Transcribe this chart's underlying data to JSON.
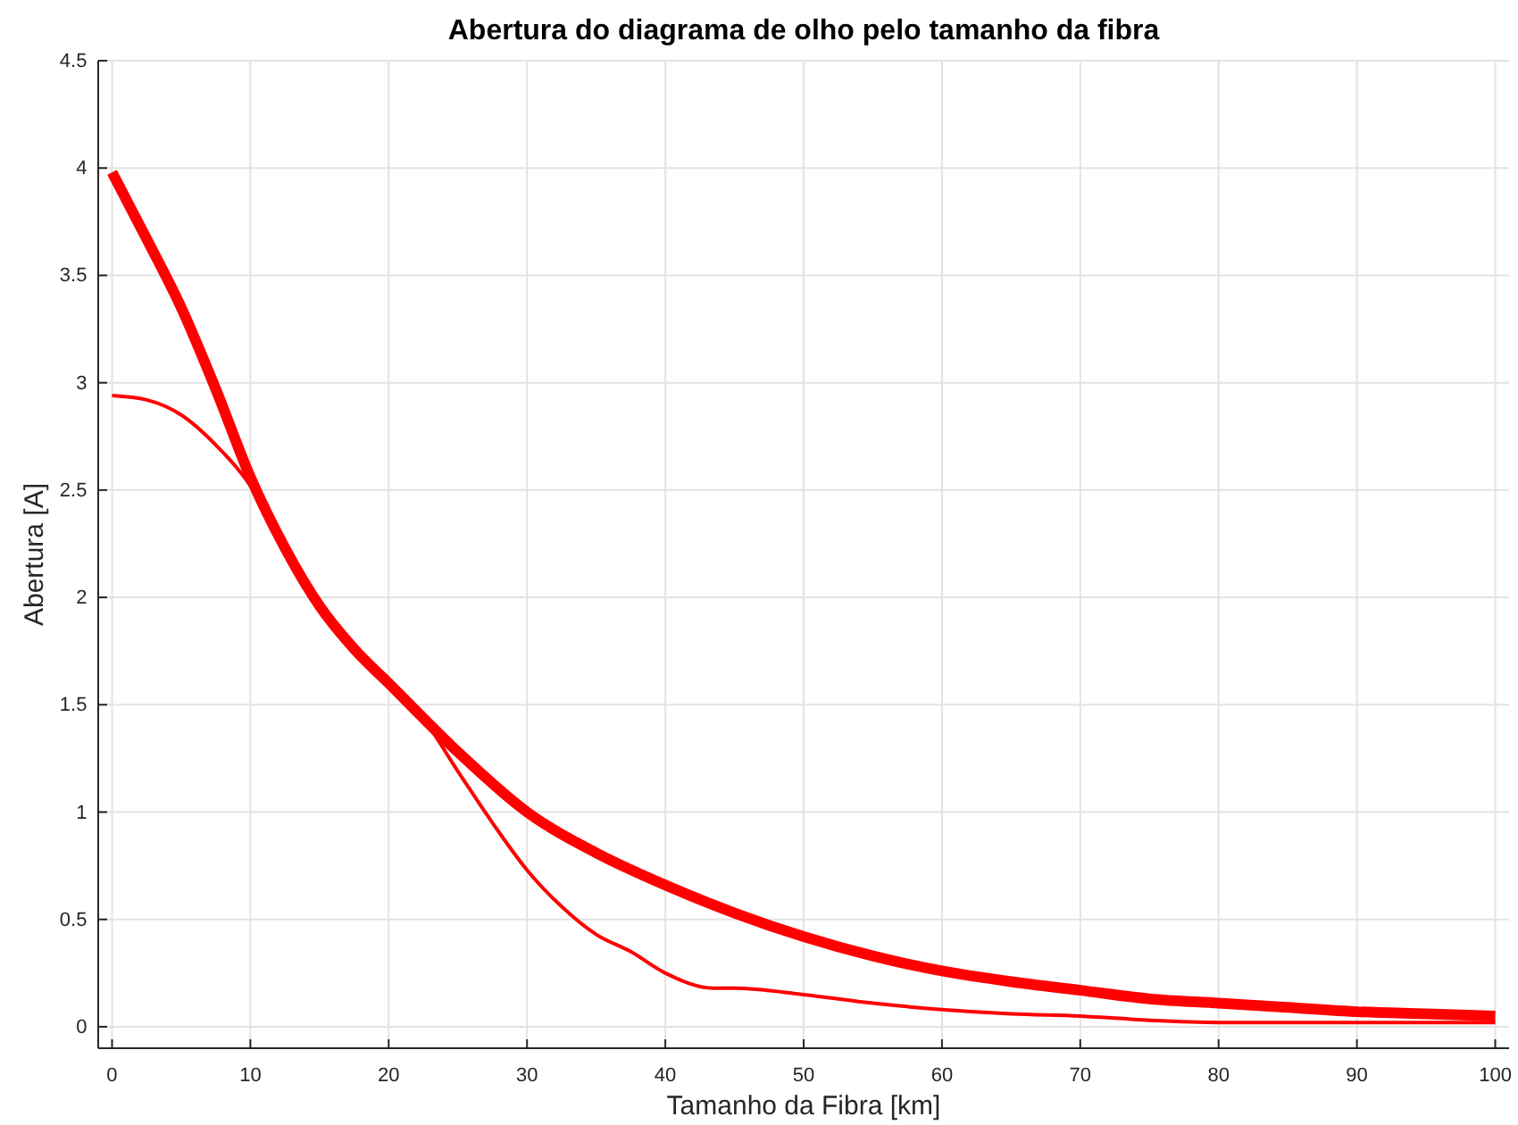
{
  "chart_data": {
    "type": "line",
    "title": "Abertura do diagrama de olho pelo tamanho da fibra",
    "xlabel": "Tamanho da Fibra [km]",
    "ylabel": "Abertura [A]",
    "xlim": [
      -1,
      101
    ],
    "ylim": [
      -0.1,
      4.5
    ],
    "xticks": [
      0,
      10,
      20,
      30,
      40,
      50,
      60,
      70,
      80,
      90,
      100
    ],
    "yticks": [
      0,
      0.5,
      1,
      1.5,
      2,
      2.5,
      3,
      3.5,
      4,
      4.5
    ],
    "grid": true,
    "line_style": "solid",
    "series": [
      {
        "color": "#ff0000",
        "x": [
          0,
          2.5,
          5,
          7.5,
          10,
          12.5,
          15,
          17.5,
          20,
          25,
          30,
          35,
          40,
          45,
          50,
          55,
          60,
          65,
          70,
          75,
          80,
          85,
          90,
          95,
          100
        ],
        "values": [
          3.98,
          3.67,
          3.35,
          2.97,
          2.56,
          2.23,
          1.96,
          1.76,
          1.6,
          1.28,
          1.0,
          0.81,
          0.66,
          0.53,
          0.42,
          0.33,
          0.26,
          0.21,
          0.17,
          0.13,
          0.11,
          0.09,
          0.07,
          0.06,
          0.05
        ]
      },
      {
        "color": "#ff0000",
        "x": [
          0,
          2.5,
          5,
          7.5,
          10,
          12.5,
          15,
          17.5,
          20,
          22,
          25,
          27.5,
          30,
          32.5,
          35,
          37.5,
          40,
          43.5,
          45,
          50,
          55,
          60,
          65,
          70,
          75,
          80,
          90,
          100
        ],
        "values": [
          2.94,
          2.92,
          2.85,
          2.71,
          2.52,
          2.22,
          1.95,
          1.75,
          1.6,
          1.48,
          1.19,
          0.95,
          0.73,
          0.56,
          0.43,
          0.35,
          0.25,
          0.18,
          0.18,
          0.15,
          0.11,
          0.08,
          0.06,
          0.05,
          0.03,
          0.02,
          0.02,
          0.02
        ]
      }
    ]
  }
}
